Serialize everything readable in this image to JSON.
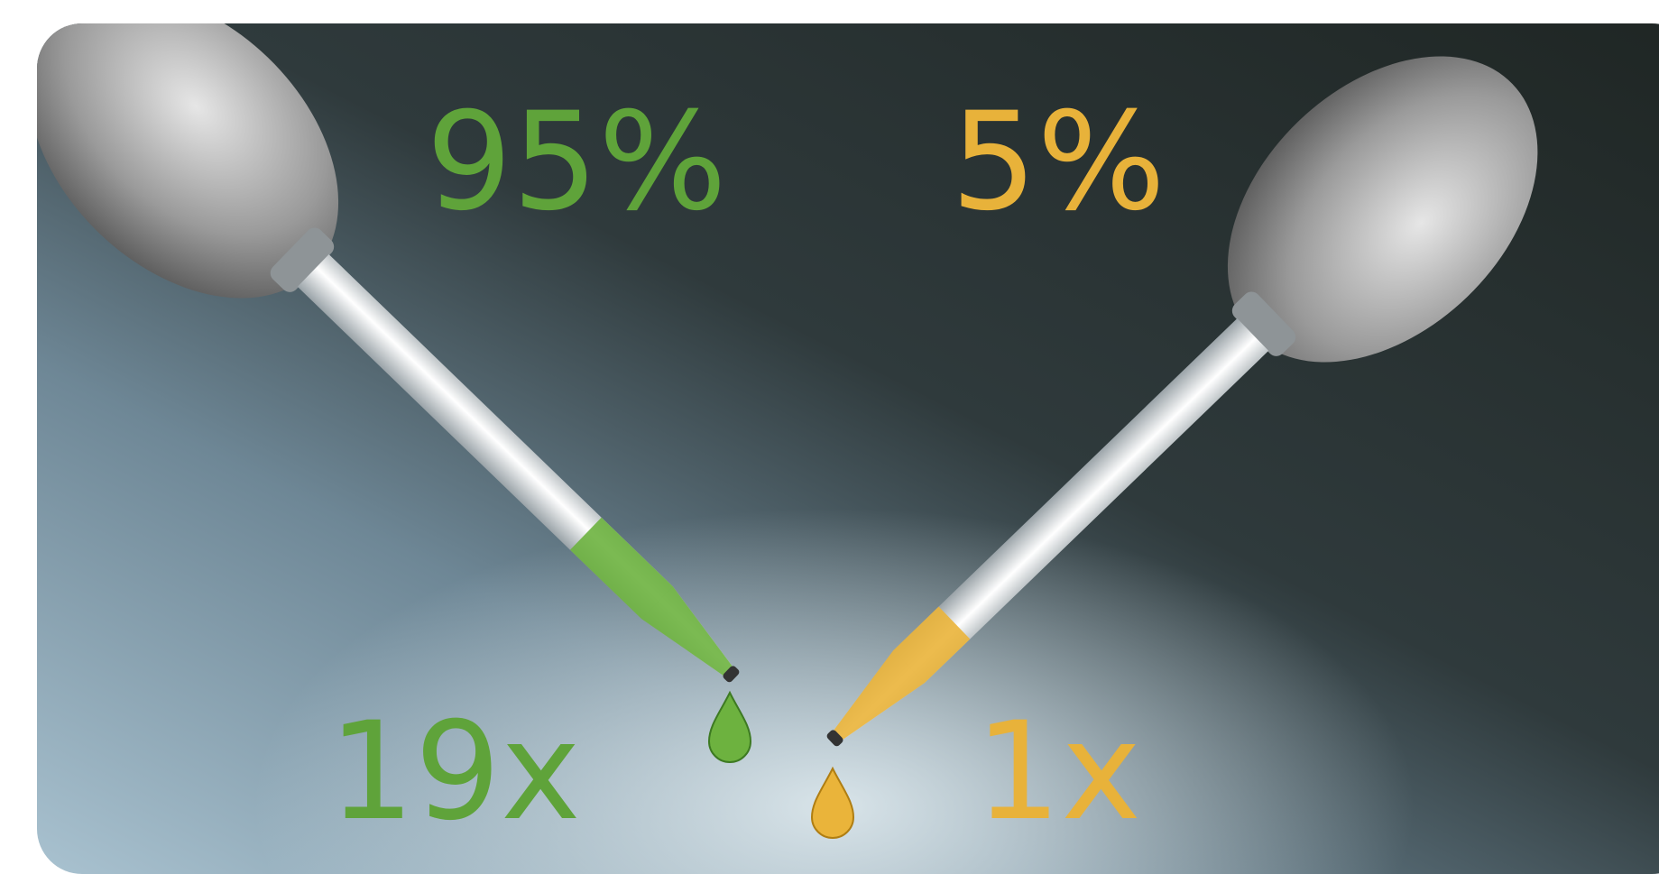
{
  "left": {
    "percent": "95%",
    "ratio": "19x"
  },
  "right": {
    "percent": "5%",
    "ratio": "1x"
  }
}
